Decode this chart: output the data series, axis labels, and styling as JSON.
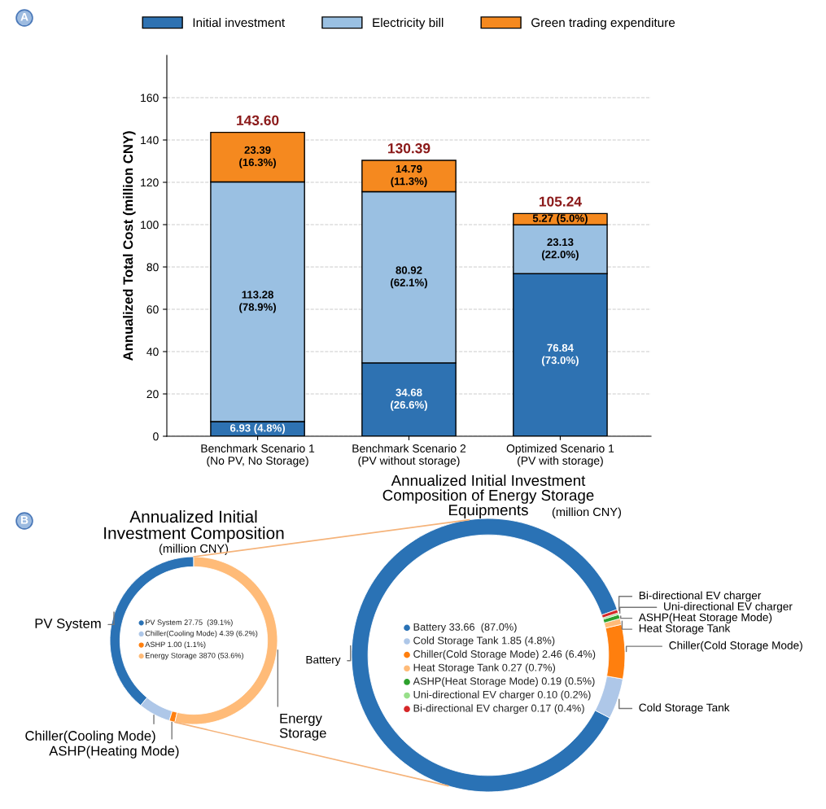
{
  "chart_data": [
    {
      "type": "bar",
      "stacked": true,
      "categories": [
        "Benchmark Scenario 1\n(No PV, No Storage)",
        "Benchmark Scenario 2\n(PV without storage)",
        "Optimized Scenario 1\n(PV with storage)"
      ],
      "series": [
        {
          "name": "Initial investment",
          "color": "#2e72b2",
          "values": [
            6.93,
            34.68,
            76.84
          ],
          "value_labels": [
            "6.93 (4.8%)",
            "34.68\n(26.6%)",
            "76.84\n(73.0%)"
          ]
        },
        {
          "name": "Electricity bill",
          "color": "#9ac0e2",
          "values": [
            113.28,
            80.92,
            23.13
          ],
          "value_labels": [
            "113.28\n(78.9%)",
            "80.92\n(62.1%)",
            "23.13\n(22.0%)"
          ]
        },
        {
          "name": "Green trading expenditure",
          "color": "#f5891f",
          "values": [
            23.39,
            14.79,
            5.27
          ],
          "value_labels": [
            "23.39\n(16.3%)",
            "14.79\n(11.3%)",
            "5.27 (5.0%)"
          ]
        }
      ],
      "totals": [
        "143.60",
        "130.39",
        "105.24"
      ],
      "ylabel": "Annualized Total Cost (million CNY)",
      "ylim": [
        0,
        180
      ],
      "yticks": [
        0,
        20,
        40,
        60,
        80,
        100,
        120,
        140,
        160
      ],
      "grid": "y",
      "legend": "top",
      "annotations": [
        "A"
      ]
    },
    {
      "type": "donut",
      "title": "Annualized Initial\nInvestment Composition",
      "subtitle": "(million CNY)",
      "categories": [
        "PV System",
        "Chiller(Cooling Mode)",
        "ASHP(Heating Mode)",
        "Energy\nStorage"
      ],
      "values": [
        39.1,
        6.2,
        1.1,
        53.6
      ],
      "colors": [
        "#2a72b5",
        "#aec7e8",
        "#ff7f0e",
        "#ffbb78"
      ],
      "annotations": [
        "B",
        "PV System 27.75  (39.1%)",
        "Chiller(Cooling Mode) 4.39 (6.2%)",
        "ASHP 1.00 (1.1%)",
        "Energy Storage 3870 (53.6%)"
      ]
    },
    {
      "type": "donut",
      "title": "Annualized Initial Investment\nComposition of Energy Storage\nEquipments",
      "subtitle": "(million CNY)",
      "categories": [
        "Battery",
        "Cold Storage Tank",
        "Chiller(Cold Storage Mode)",
        "Heat Storage Tank",
        "ASHP(Heat Storage Mode)",
        "Uni-directional EV charger",
        "Bi-directional EV charger"
      ],
      "values": [
        87.0,
        4.8,
        6.4,
        0.7,
        0.5,
        0.2,
        0.4
      ],
      "colors": [
        "#2a72b5",
        "#aec7e8",
        "#ff7f0e",
        "#ffbb78",
        "#2ca02c",
        "#98df8a",
        "#d62728"
      ],
      "annotations": [
        "Battery 33.66  (87.0%)",
        "Cold Storage Tank 1.85 (4.8%)",
        "Chiller(Cold Storage Mode) 2.46 (6.4%)",
        "Heat Storage Tank 0.27 (0.7%)",
        "ASHP(Heat Storage Mode) 0.19 (0.5%)",
        "Uni-directional EV charger 0.10 (0.2%)",
        "Bi-directional EV charger 0.17 (0.4%)"
      ]
    }
  ]
}
